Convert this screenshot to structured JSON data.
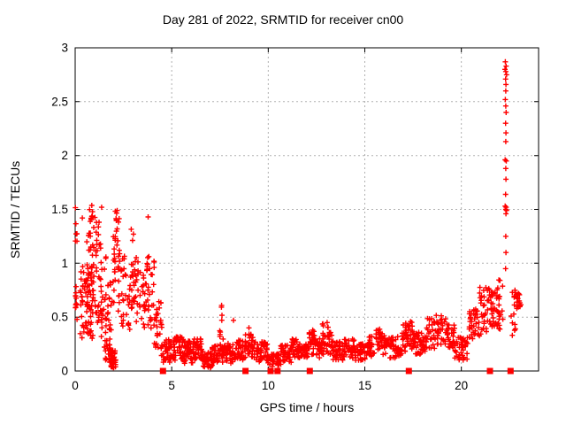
{
  "chart_data": {
    "type": "scatter",
    "title": "Day 281 of 2022, SRMTID for receiver cn00",
    "xlabel": "GPS time / hours",
    "ylabel": "SRMTID / TECUs",
    "xlim": [
      0,
      24
    ],
    "ylim": [
      0,
      3
    ],
    "xticks": {
      "values": [
        0,
        5,
        10,
        15,
        20
      ],
      "labels": [
        "0",
        "5",
        "10",
        "15",
        "20"
      ]
    },
    "yticks": {
      "values": [
        0,
        0.5,
        1,
        1.5,
        2,
        2.5,
        3
      ],
      "labels": [
        "0",
        "0.5",
        "1",
        "1.5",
        "2",
        "2.5",
        "3"
      ]
    },
    "grid": {
      "show": true,
      "color": "#b0b0b0",
      "style": "dotted"
    },
    "background": "#ffffff",
    "axis_color": "#000000",
    "marker_color": "#ff0000",
    "legend": "none",
    "series": [
      {
        "name": "srmtid",
        "marker": "plus",
        "color": "#ff0000",
        "seed": 2022281,
        "clusters": [
          [
            0.0,
            0.1,
            0.45,
            0.9,
            12
          ],
          [
            0.0,
            0.1,
            1.18,
            1.52,
            7
          ],
          [
            0.25,
            0.45,
            0.3,
            1.0,
            20
          ],
          [
            0.45,
            0.65,
            0.35,
            0.85,
            18
          ],
          [
            0.6,
            0.95,
            0.3,
            1.35,
            55
          ],
          [
            0.72,
            0.95,
            1.35,
            1.55,
            8
          ],
          [
            0.95,
            1.3,
            0.45,
            1.45,
            30
          ],
          [
            1.3,
            1.6,
            0.3,
            1.2,
            28
          ],
          [
            1.5,
            1.85,
            0.07,
            0.3,
            22
          ],
          [
            1.6,
            1.95,
            0.35,
            0.85,
            18
          ],
          [
            1.85,
            2.1,
            0.03,
            0.2,
            40
          ],
          [
            1.95,
            2.1,
            0.5,
            1.3,
            12
          ],
          [
            2.05,
            2.35,
            0.55,
            1.5,
            28
          ],
          [
            2.35,
            2.65,
            0.4,
            1.1,
            18
          ],
          [
            2.65,
            2.95,
            0.35,
            0.9,
            16
          ],
          [
            2.9,
            3.3,
            0.45,
            1.35,
            30
          ],
          [
            3.3,
            3.65,
            0.4,
            1.0,
            20
          ],
          [
            3.65,
            4.1,
            0.35,
            1.15,
            32
          ],
          [
            4.1,
            4.5,
            0.2,
            0.65,
            26
          ],
          [
            4.45,
            5.0,
            0.08,
            0.3,
            38
          ],
          [
            5.0,
            5.6,
            0.1,
            0.32,
            42
          ],
          [
            5.6,
            6.1,
            0.07,
            0.28,
            40
          ],
          [
            6.1,
            6.55,
            0.1,
            0.3,
            36
          ],
          [
            6.55,
            7.1,
            0.03,
            0.18,
            40
          ],
          [
            7.1,
            7.45,
            0.07,
            0.25,
            26
          ],
          [
            7.45,
            7.62,
            0.3,
            0.62,
            8
          ],
          [
            7.45,
            7.75,
            0.08,
            0.3,
            22
          ],
          [
            7.75,
            8.3,
            0.07,
            0.26,
            40
          ],
          [
            8.3,
            8.8,
            0.1,
            0.3,
            36
          ],
          [
            8.8,
            9.35,
            0.12,
            0.35,
            40
          ],
          [
            9.35,
            9.95,
            0.08,
            0.28,
            40
          ],
          [
            9.95,
            10.65,
            0.04,
            0.16,
            46
          ],
          [
            10.65,
            11.2,
            0.08,
            0.24,
            40
          ],
          [
            11.2,
            11.6,
            0.12,
            0.3,
            30
          ],
          [
            11.6,
            12.1,
            0.1,
            0.26,
            36
          ],
          [
            12.1,
            12.45,
            0.15,
            0.38,
            26
          ],
          [
            12.45,
            12.8,
            0.12,
            0.3,
            26
          ],
          [
            12.8,
            13.35,
            0.15,
            0.45,
            36
          ],
          [
            13.35,
            13.9,
            0.1,
            0.28,
            36
          ],
          [
            13.9,
            14.5,
            0.12,
            0.3,
            36
          ],
          [
            14.5,
            15.1,
            0.08,
            0.26,
            36
          ],
          [
            15.1,
            15.55,
            0.12,
            0.32,
            30
          ],
          [
            15.55,
            15.8,
            0.2,
            0.45,
            15
          ],
          [
            15.8,
            16.3,
            0.15,
            0.36,
            30
          ],
          [
            16.3,
            16.9,
            0.12,
            0.32,
            36
          ],
          [
            16.9,
            17.25,
            0.18,
            0.45,
            26
          ],
          [
            17.25,
            17.6,
            0.2,
            0.48,
            26
          ],
          [
            17.6,
            18.15,
            0.15,
            0.36,
            36
          ],
          [
            18.15,
            18.65,
            0.2,
            0.5,
            30
          ],
          [
            18.65,
            19.3,
            0.22,
            0.52,
            36
          ],
          [
            19.3,
            19.65,
            0.2,
            0.45,
            22
          ],
          [
            19.65,
            20.35,
            0.1,
            0.32,
            42
          ],
          [
            20.35,
            20.95,
            0.3,
            0.58,
            36
          ],
          [
            20.95,
            21.35,
            0.28,
            0.78,
            26
          ],
          [
            21.35,
            22.0,
            0.4,
            0.8,
            46
          ],
          [
            21.9,
            22.15,
            0.3,
            0.88,
            12
          ],
          [
            22.55,
            22.8,
            0.28,
            0.75,
            14
          ],
          [
            22.85,
            23.1,
            0.58,
            0.72,
            18
          ]
        ],
        "points": [
          [
            0.37,
            1.42
          ],
          [
            1.37,
            1.52
          ],
          [
            3.78,
            1.43
          ],
          [
            8.2,
            0.47
          ],
          [
            9.0,
            0.4
          ],
          [
            12.3,
            0.38
          ],
          [
            13.05,
            0.45
          ],
          [
            22.28,
            2.87
          ],
          [
            22.32,
            2.83
          ],
          [
            22.26,
            2.8
          ],
          [
            22.3,
            2.78
          ],
          [
            22.34,
            2.75
          ],
          [
            22.29,
            2.71
          ],
          [
            22.31,
            2.66
          ],
          [
            22.3,
            2.6
          ],
          [
            22.28,
            2.52
          ],
          [
            22.3,
            2.46
          ],
          [
            22.32,
            2.4
          ],
          [
            22.29,
            2.3
          ],
          [
            22.31,
            2.21
          ],
          [
            22.3,
            2.13
          ],
          [
            22.27,
            1.96
          ],
          [
            22.33,
            1.95
          ],
          [
            22.3,
            1.88
          ],
          [
            22.31,
            1.78
          ],
          [
            22.29,
            1.64
          ],
          [
            22.27,
            1.53
          ],
          [
            22.32,
            1.52
          ],
          [
            22.3,
            1.5
          ],
          [
            22.34,
            1.49
          ],
          [
            22.31,
            1.46
          ],
          [
            22.3,
            1.25
          ],
          [
            22.31,
            1.1
          ],
          [
            22.29,
            0.95
          ]
        ]
      },
      {
        "name": "event-flags",
        "marker": "filled-square",
        "color": "#ff0000",
        "points": [
          [
            4.55,
            0
          ],
          [
            8.82,
            0
          ],
          [
            10.12,
            0
          ],
          [
            10.48,
            0
          ],
          [
            12.15,
            0
          ],
          [
            17.28,
            0
          ],
          [
            21.48,
            0
          ],
          [
            22.55,
            0
          ]
        ]
      }
    ]
  }
}
